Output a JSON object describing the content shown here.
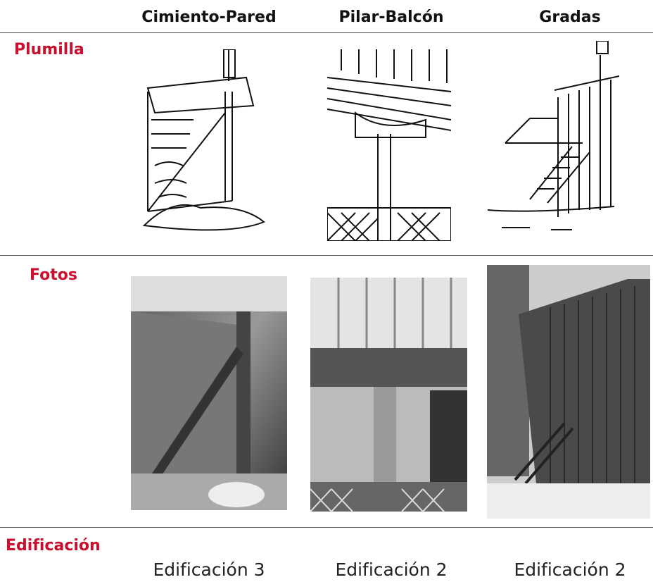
{
  "table": {
    "columns": [
      "Cimiento-Pared",
      "Pilar-Balcón",
      "Gradas"
    ],
    "rows": [
      {
        "label": "Plumilla"
      },
      {
        "label": "Fotos"
      },
      {
        "label": "Edificación",
        "cells": [
          "Edificación 3",
          "Edificación 2",
          "Edificación 2"
        ]
      }
    ]
  }
}
